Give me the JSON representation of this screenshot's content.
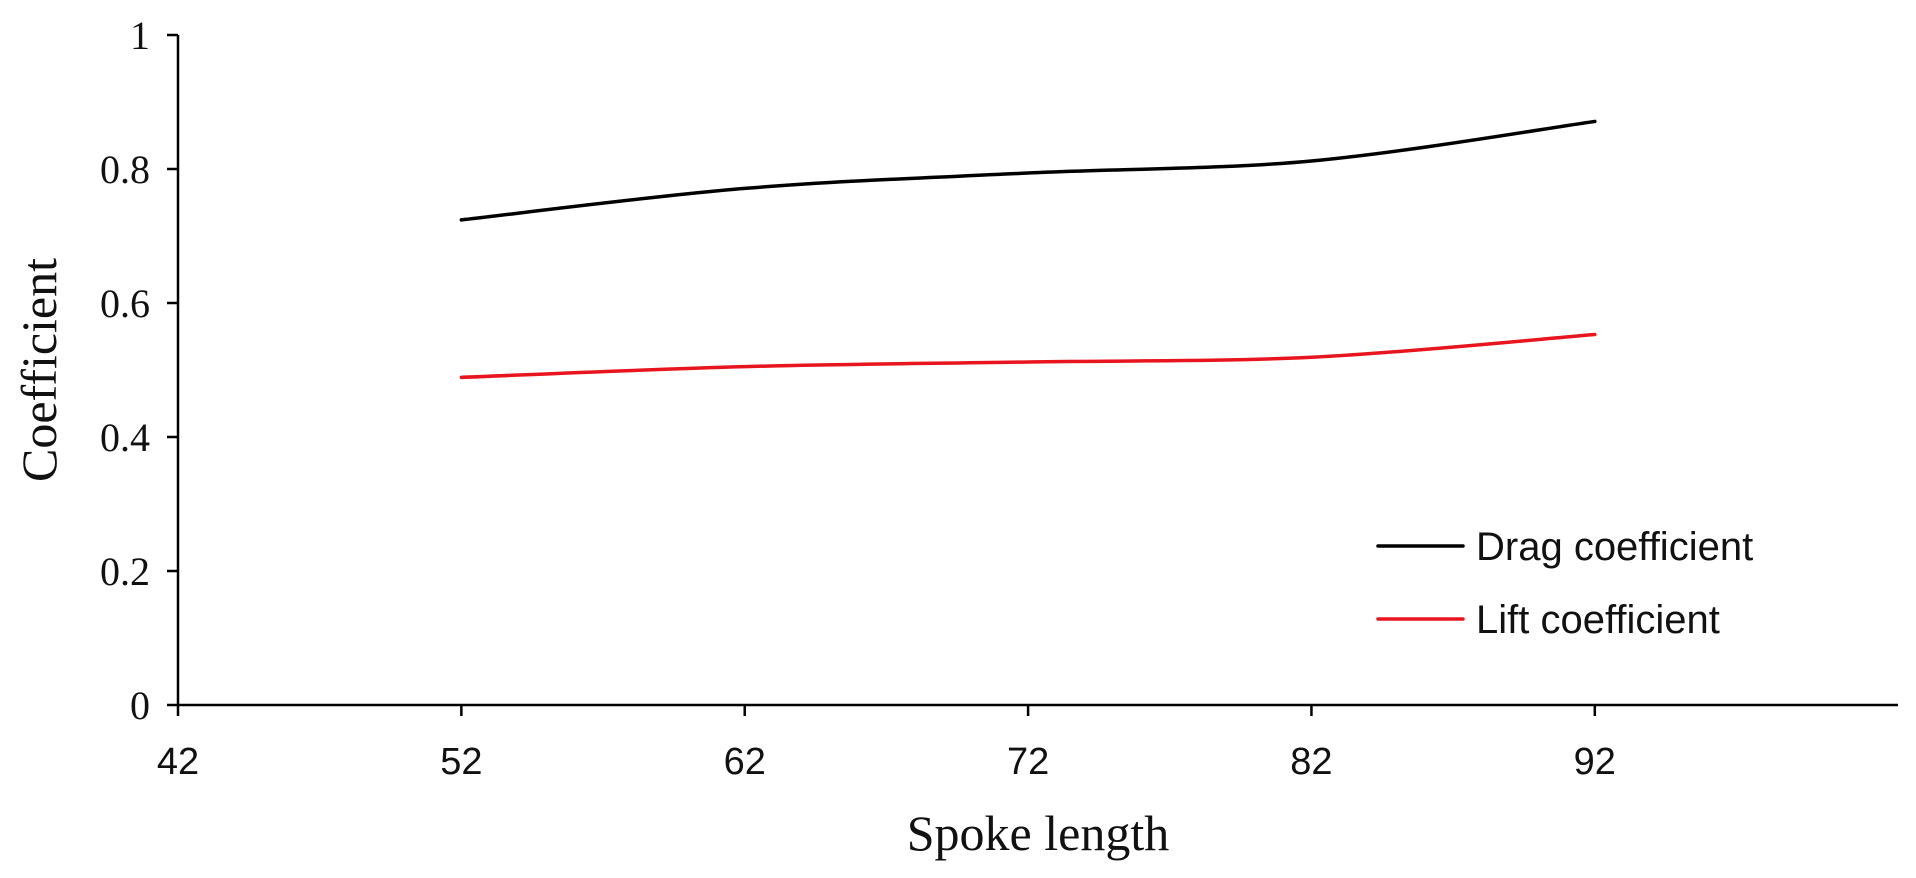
{
  "chart_data": {
    "type": "line",
    "title": "",
    "xlabel": "Spoke length",
    "ylabel": "Coefficient",
    "x": [
      52,
      62,
      72,
      82,
      92
    ],
    "x_ticks": [
      "42",
      "52",
      "62",
      "72",
      "82",
      "92"
    ],
    "y_ticks": [
      "0",
      "0.2",
      "0.4",
      "0.6",
      "0.8",
      "1"
    ],
    "xlim": [
      42,
      92
    ],
    "ylim": [
      0,
      1
    ],
    "grid": false,
    "legend_position": "bottom-right",
    "series": [
      {
        "name": "Drag coefficient",
        "color": "#000000",
        "values": [
          0.724,
          0.771,
          0.794,
          0.812,
          0.871
        ]
      },
      {
        "name": "Lift coefficient",
        "color": "#e8141e",
        "values": [
          0.489,
          0.505,
          0.512,
          0.519,
          0.553
        ]
      }
    ]
  }
}
